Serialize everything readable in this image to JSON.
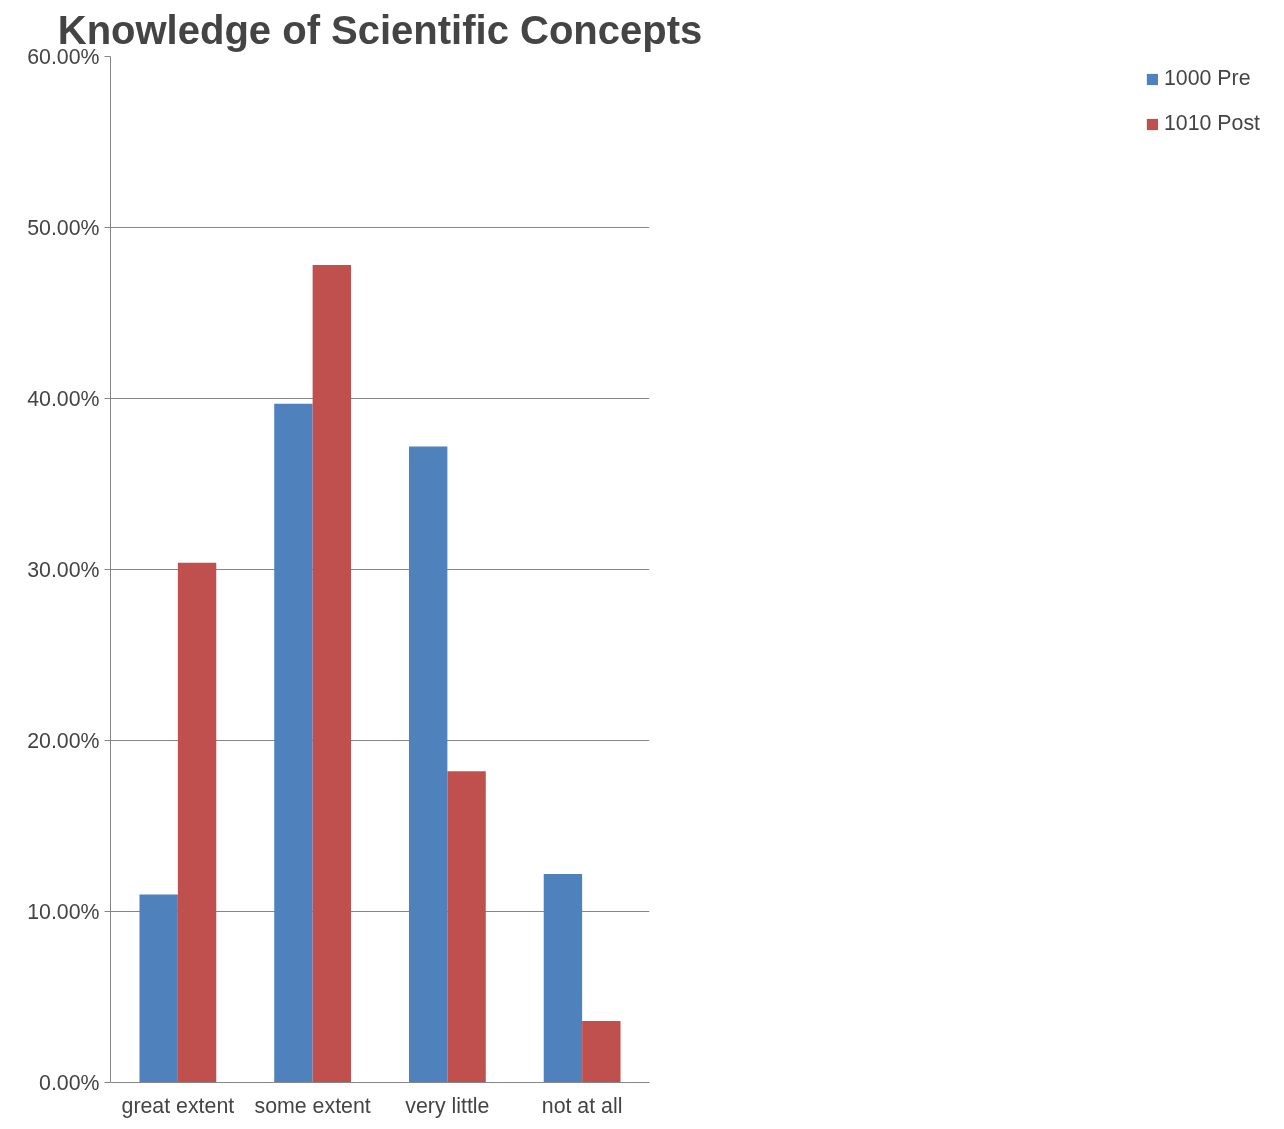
{
  "chart_data": {
    "type": "bar",
    "title": "Knowledge of Scientific Concepts",
    "categories": [
      "great extent",
      "some extent",
      "very little",
      "not at all"
    ],
    "series": [
      {
        "name": "1000 Pre",
        "color": "#4f81bd",
        "values": [
          11.0,
          39.7,
          37.2,
          12.2
        ]
      },
      {
        "name": "1010 Post",
        "color": "#c0504d",
        "values": [
          30.4,
          47.8,
          18.2,
          3.6
        ]
      }
    ],
    "ylim": [
      0,
      60
    ],
    "yticks": [
      {
        "value": 0,
        "label": "0.00%"
      },
      {
        "value": 10,
        "label": "10.00%"
      },
      {
        "value": 20,
        "label": "20.00%"
      },
      {
        "value": 30,
        "label": "30.00%"
      },
      {
        "value": 40,
        "label": "40.00%"
      },
      {
        "value": 50,
        "label": "50.00%"
      },
      {
        "value": 60,
        "label": "60.00%"
      }
    ],
    "grid": "y",
    "legend": "right"
  }
}
